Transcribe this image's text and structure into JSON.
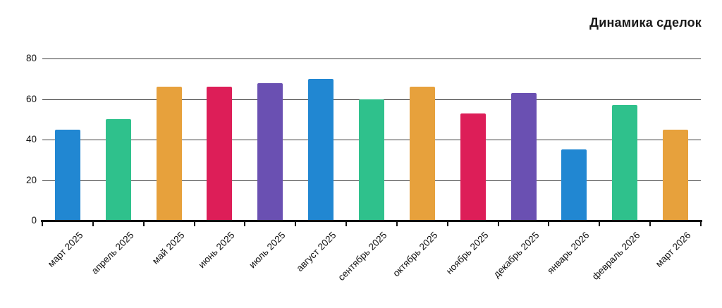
{
  "chart_data": {
    "type": "bar",
    "title": "Динамика сделок",
    "categories": [
      "март 2025",
      "апрель 2025",
      "май 2025",
      "июнь 2025",
      "июль 2025",
      "август 2025",
      "сентябрь 2025",
      "октябрь 2025",
      "ноябрь 2025",
      "декабрь 2025",
      "январь 2026",
      "февраль 2026",
      "март 2026"
    ],
    "values": [
      45,
      50,
      66,
      66,
      68,
      70,
      60,
      66,
      53,
      63,
      35,
      57,
      45
    ],
    "bar_color_cycle": [
      "#2187d2",
      "#2fc18c",
      "#e7a13c",
      "#dd1e58",
      "#6a50b2"
    ],
    "yticks": [
      0,
      20,
      40,
      60,
      80
    ],
    "ylim": [
      0,
      80
    ],
    "xlabel": "",
    "ylabel": "",
    "grid": true,
    "legend_position": "none",
    "x_label_rotation_deg": -45,
    "title_position": "top-right"
  },
  "colors": {
    "background": "#ffffff",
    "gridline": "#3d3d3d",
    "axis": "#111111",
    "text": "#111111",
    "title_text": "#1a1a1a"
  }
}
